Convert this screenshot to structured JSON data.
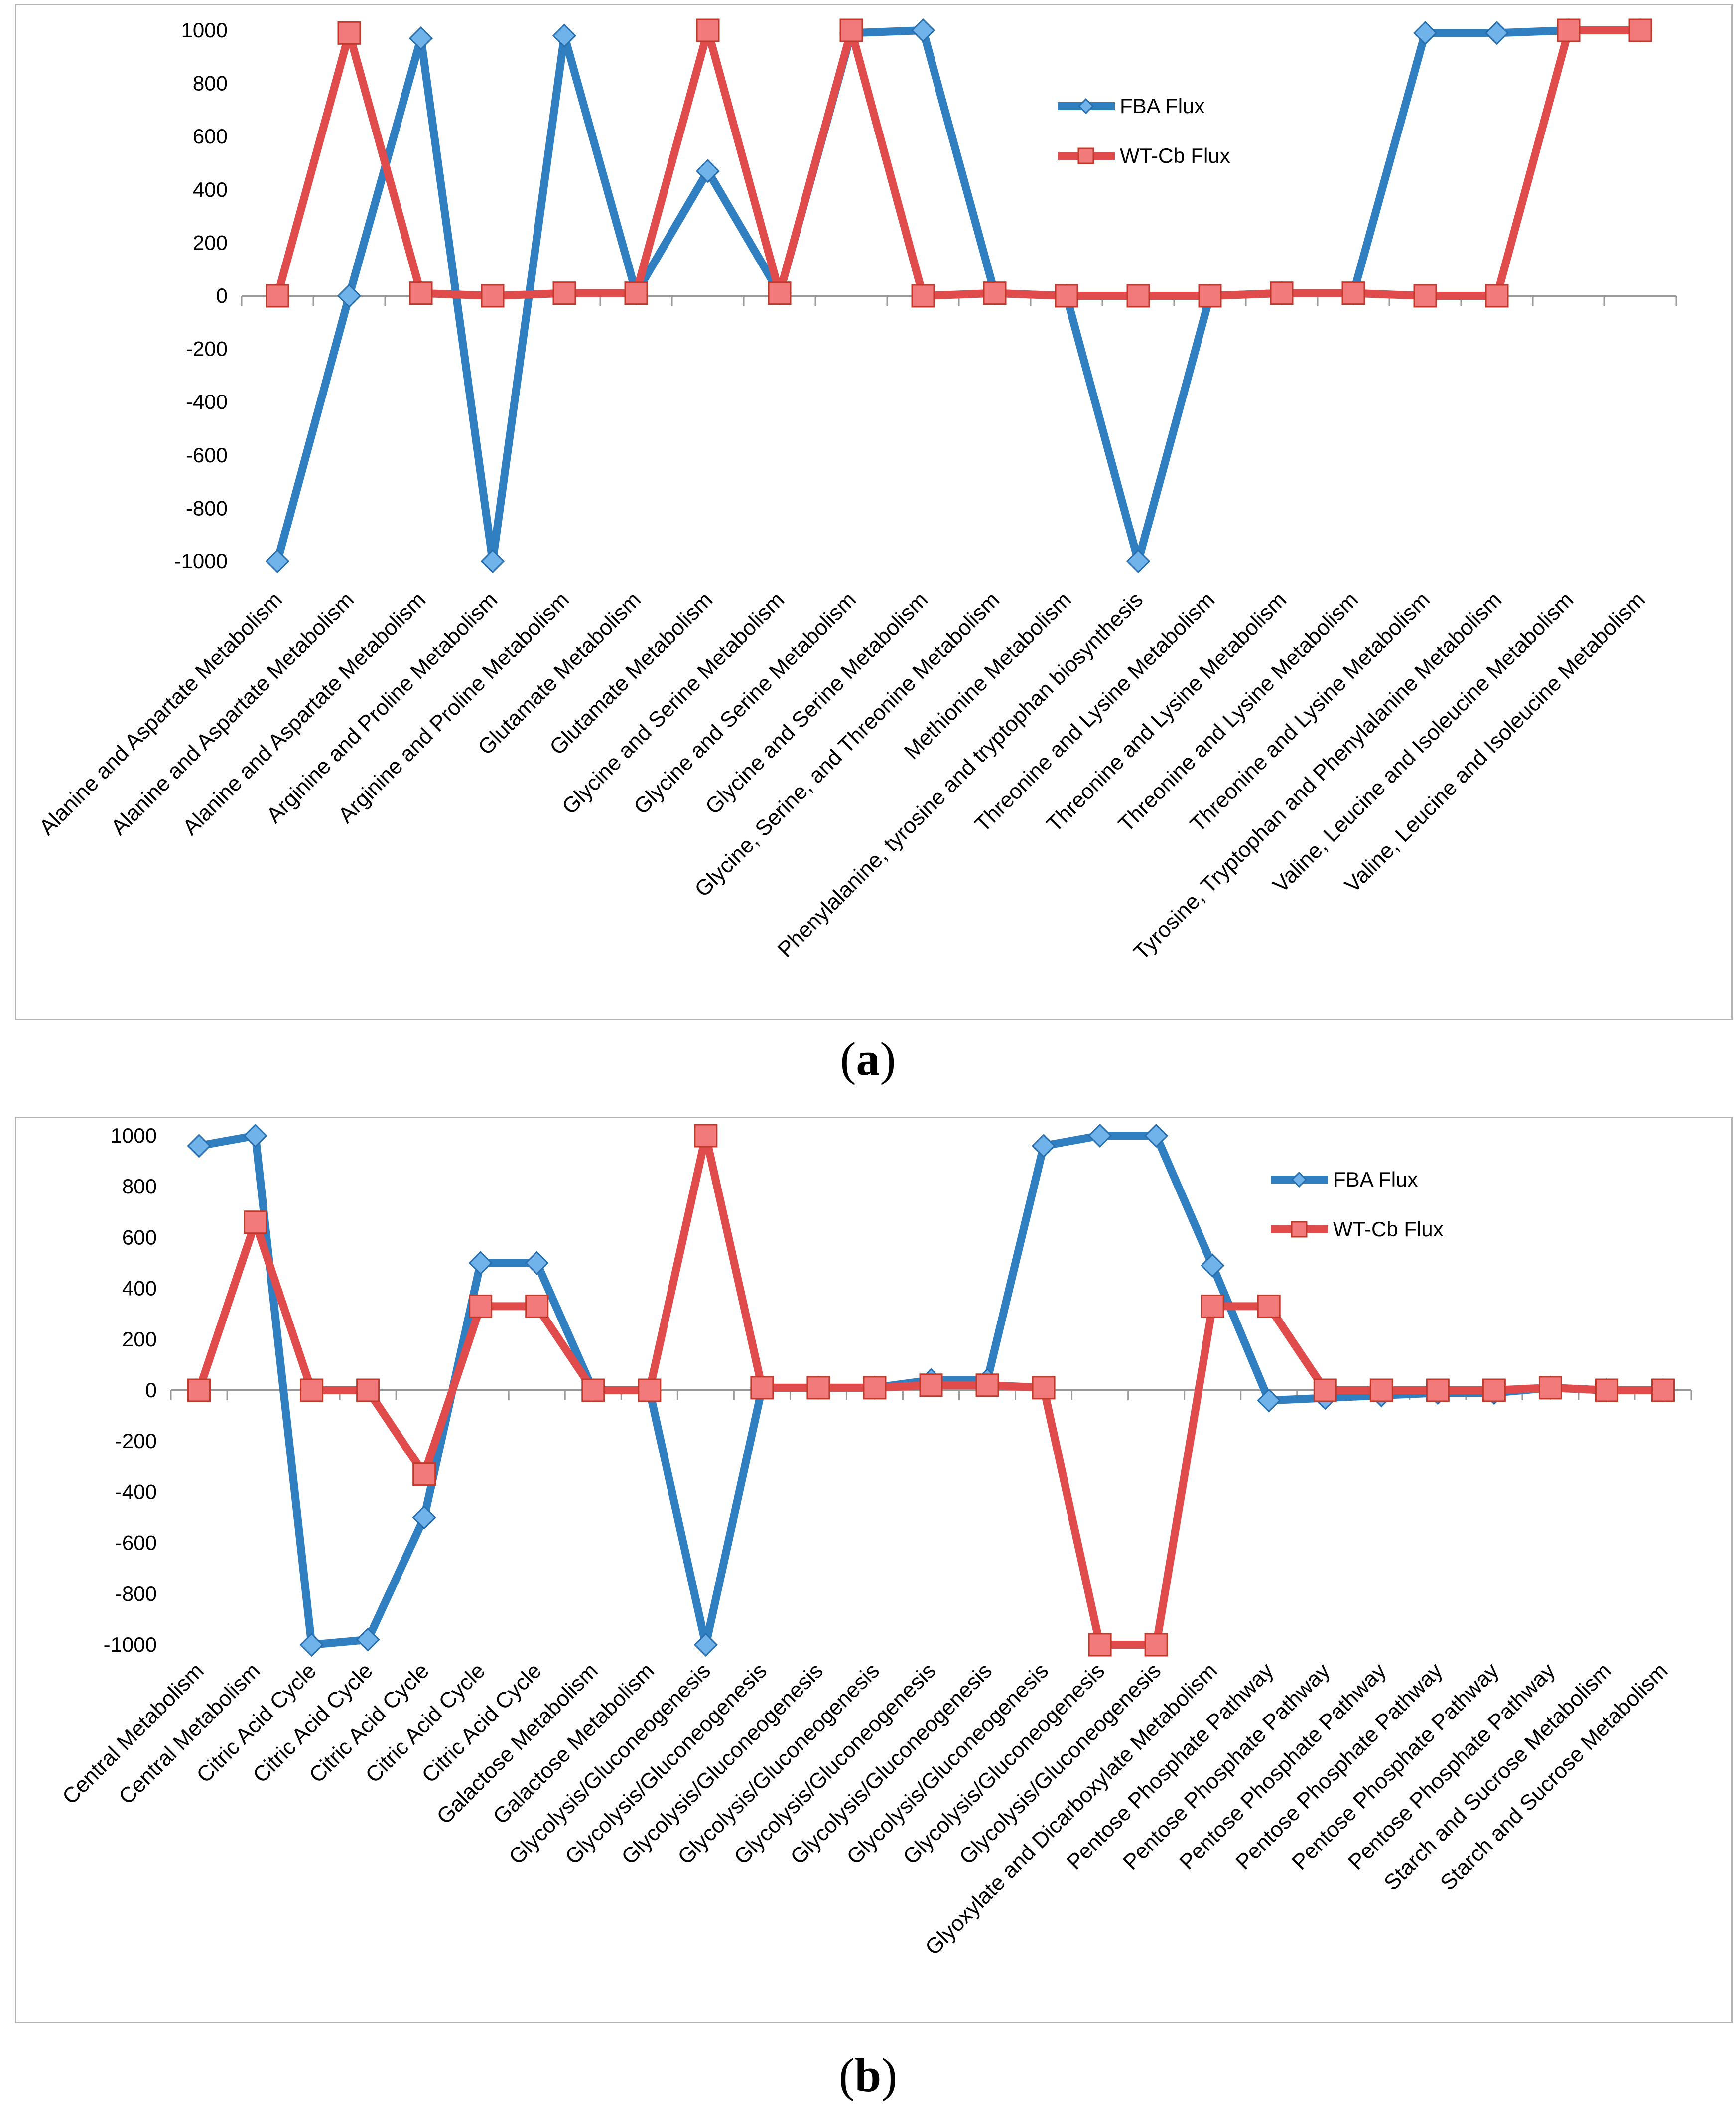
{
  "chart_data": [
    {
      "type": "line",
      "panel_label": "a",
      "ylim": [
        -1000,
        1000
      ],
      "yticks": [
        1000,
        800,
        600,
        400,
        200,
        0,
        -200,
        -400,
        -600,
        -800,
        -1000
      ],
      "categories": [
        "Alanine and Aspartate Metabolism",
        "Alanine and Aspartate Metabolism",
        "Alanine and Aspartate Metabolism",
        "Arginine and Proline Metabolism",
        "Arginine and Proline Metabolism",
        "Glutamate Metabolism",
        "Glutamate Metabolism",
        "Glycine and Serine Metabolism",
        "Glycine and Serine Metabolism",
        "Glycine and Serine Metabolism",
        "Glycine, Serine, and Threonine Metabolism",
        "Methionine Metabolism",
        "Phenylalanine, tyrosine and tryptophan biosynthesis",
        "Threonine and Lysine Metabolism",
        "Threonine and Lysine Metabolism",
        "Threonine and Lysine Metabolism",
        "Threonine and Lysine Metabolism",
        "Tyrosine, Tryptophan and Phenylalanine Metabolism",
        "Valine, Leucine and Isoleucine Metabolism",
        "Valine, Leucine and Isoleucine Metabolism"
      ],
      "series": [
        {
          "name": "FBA Flux",
          "color": "#2f7fc1",
          "values": [
            -1000,
            0,
            970,
            -1000,
            980,
            10,
            470,
            10,
            990,
            1000,
            10,
            0,
            -1000,
            0,
            10,
            10,
            990,
            990,
            1000,
            1000
          ]
        },
        {
          "name": "WT-Cb Flux",
          "color": "#e04b4b",
          "values": [
            0,
            990,
            10,
            0,
            10,
            10,
            1000,
            10,
            1000,
            0,
            10,
            0,
            0,
            0,
            10,
            10,
            0,
            0,
            1000,
            1000
          ]
        }
      ],
      "legend_position": "top-right"
    },
    {
      "type": "line",
      "panel_label": "b",
      "ylim": [
        -1000,
        1000
      ],
      "yticks": [
        1000,
        800,
        600,
        400,
        200,
        0,
        -200,
        -400,
        -600,
        -800,
        -1000
      ],
      "categories": [
        "Central Metabolism",
        "Central Metabolism",
        "Citric Acid Cycle",
        "Citric Acid Cycle",
        "Citric Acid Cycle",
        "Citric Acid Cycle",
        "Citric Acid Cycle",
        "Galactose Metabolism",
        "Galactose Metabolism",
        "Glycolysis/Gluconeogenesis",
        "Glycolysis/Gluconeogenesis",
        "Glycolysis/Gluconeogenesis",
        "Glycolysis/Gluconeogenesis",
        "Glycolysis/Gluconeogenesis",
        "Glycolysis/Gluconeogenesis",
        "Glycolysis/Gluconeogenesis",
        "Glycolysis/Gluconeogenesis",
        "Glycolysis/Gluconeogenesis",
        "Glyoxylate and Dicarboxylate Metabolism",
        "Pentose Phosphate Pathway",
        "Pentose Phosphate Pathway",
        "Pentose Phosphate Pathway",
        "Pentose Phosphate Pathway",
        "Pentose Phosphate Pathway",
        "Pentose Phosphate Pathway",
        "Starch and Sucrose Metabolism",
        "Starch and Sucrose Metabolism"
      ],
      "series": [
        {
          "name": "FBA Flux",
          "color": "#2f7fc1",
          "values": [
            960,
            1000,
            -1000,
            -980,
            -500,
            500,
            500,
            0,
            0,
            -1000,
            10,
            10,
            10,
            40,
            40,
            960,
            1000,
            1000,
            490,
            -40,
            -30,
            -20,
            -10,
            -10,
            10,
            0,
            0
          ]
        },
        {
          "name": "WT-Cb Flux",
          "color": "#e04b4b",
          "values": [
            0,
            660,
            0,
            0,
            -330,
            330,
            330,
            0,
            0,
            1000,
            10,
            10,
            10,
            20,
            20,
            10,
            -1000,
            -1000,
            330,
            330,
            0,
            0,
            0,
            0,
            10,
            0,
            0
          ]
        }
      ],
      "legend_position": "top-right"
    }
  ]
}
